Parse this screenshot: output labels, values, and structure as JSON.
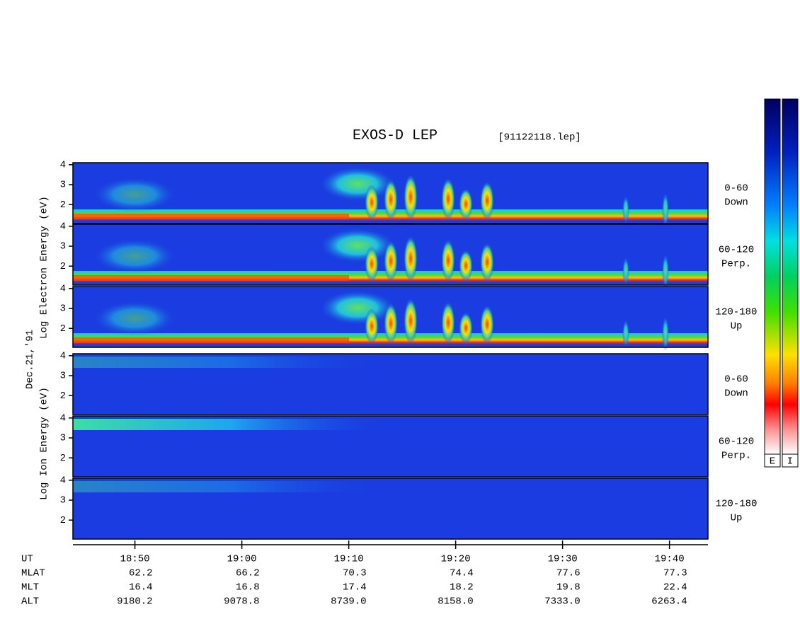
{
  "chart_data": {
    "type": "spectrogram",
    "title": "EXOS-D LEP",
    "file": "[91122118.lep]",
    "date": "Dec.21,'91",
    "groups": [
      {
        "name": "electron",
        "ylabel": "Log Electron Energy (eV)"
      },
      {
        "name": "ion",
        "ylabel": "Log Ion Energy (eV)"
      }
    ],
    "panels": [
      {
        "group": 0,
        "label": [
          "0-60",
          "Down"
        ],
        "ylim": [
          1.05,
          4.1
        ],
        "yticks": [
          2,
          3,
          4
        ]
      },
      {
        "group": 0,
        "label": [
          "60-120",
          "Perp."
        ],
        "ylim": [
          1.05,
          4.1
        ],
        "yticks": [
          2,
          3,
          4
        ]
      },
      {
        "group": 0,
        "label": [
          "120-180",
          "Up"
        ],
        "ylim": [
          1.05,
          4.1
        ],
        "yticks": [
          2,
          3,
          4
        ]
      },
      {
        "group": 1,
        "label": [
          "0-60",
          "Down"
        ],
        "ylim": [
          1.05,
          4.1
        ],
        "yticks": [
          2,
          3,
          4
        ]
      },
      {
        "group": 1,
        "label": [
          "60-120",
          "Perp."
        ],
        "ylim": [
          1.05,
          4.1
        ],
        "yticks": [
          2,
          3,
          4
        ]
      },
      {
        "group": 1,
        "label": [
          "120-180",
          "Up"
        ],
        "ylim": [
          1.05,
          4.1
        ],
        "yticks": [
          2,
          3,
          4
        ]
      }
    ],
    "xlim": [
      44.2,
      103.6
    ],
    "xticks": [
      {
        "value": 50,
        "label": "18:50"
      },
      {
        "value": 60,
        "label": "19:00"
      },
      {
        "value": 70,
        "label": "19:10"
      },
      {
        "value": 80,
        "label": "19:20"
      },
      {
        "value": 90,
        "label": "19:30"
      },
      {
        "value": 100,
        "label": "19:40"
      }
    ],
    "orbit": {
      "row_labels": [
        "UT",
        "MLAT",
        "MLT",
        "ALT"
      ],
      "rows": [
        [
          "62.2",
          "66.2",
          "70.3",
          "74.4",
          "77.6",
          "77.3"
        ],
        [
          "16.4",
          "16.8",
          "17.4",
          "18.2",
          "19.8",
          "22.4"
        ],
        [
          "9180.2",
          "9078.8",
          "8739.0",
          "8158.0",
          "7333.0",
          "6263.4"
        ]
      ]
    },
    "colorbar_labels": [
      "E",
      "I"
    ]
  }
}
